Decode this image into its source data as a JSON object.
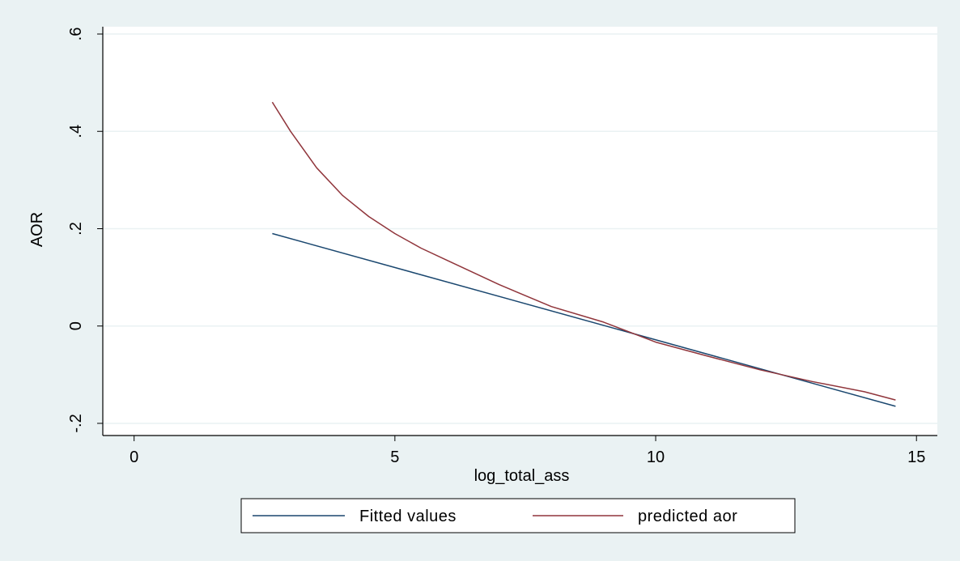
{
  "chart_data": {
    "type": "line",
    "title": "",
    "xlabel": "log_total_ass",
    "ylabel": "AOR",
    "xlim": [
      -0.6,
      15.4
    ],
    "ylim": [
      -0.225,
      0.615
    ],
    "xticks": [
      0,
      5,
      10,
      15
    ],
    "xtick_labels": [
      "0",
      "5",
      "10",
      "15"
    ],
    "yticks": [
      -0.2,
      0,
      0.2,
      0.4,
      0.6
    ],
    "ytick_labels": [
      "-.2",
      "0",
      ".2",
      ".4",
      ".6"
    ],
    "grid": "horizontal",
    "legend_position": "bottom",
    "series": [
      {
        "name": "Fitted values",
        "color": "#1a476f",
        "x": [
          2.65,
          14.6
        ],
        "y": [
          0.19,
          -0.165
        ]
      },
      {
        "name": "predicted aor",
        "color": "#90353b",
        "x": [
          2.65,
          3.0,
          3.5,
          4.0,
          4.5,
          5.0,
          5.5,
          6.0,
          7.0,
          8.0,
          9.0,
          10.0,
          11.0,
          12.0,
          13.0,
          14.0,
          14.6
        ],
        "y": [
          0.46,
          0.4,
          0.325,
          0.268,
          0.225,
          0.19,
          0.16,
          0.135,
          0.085,
          0.04,
          0.008,
          -0.033,
          -0.062,
          -0.09,
          -0.114,
          -0.135,
          -0.152
        ]
      }
    ]
  }
}
